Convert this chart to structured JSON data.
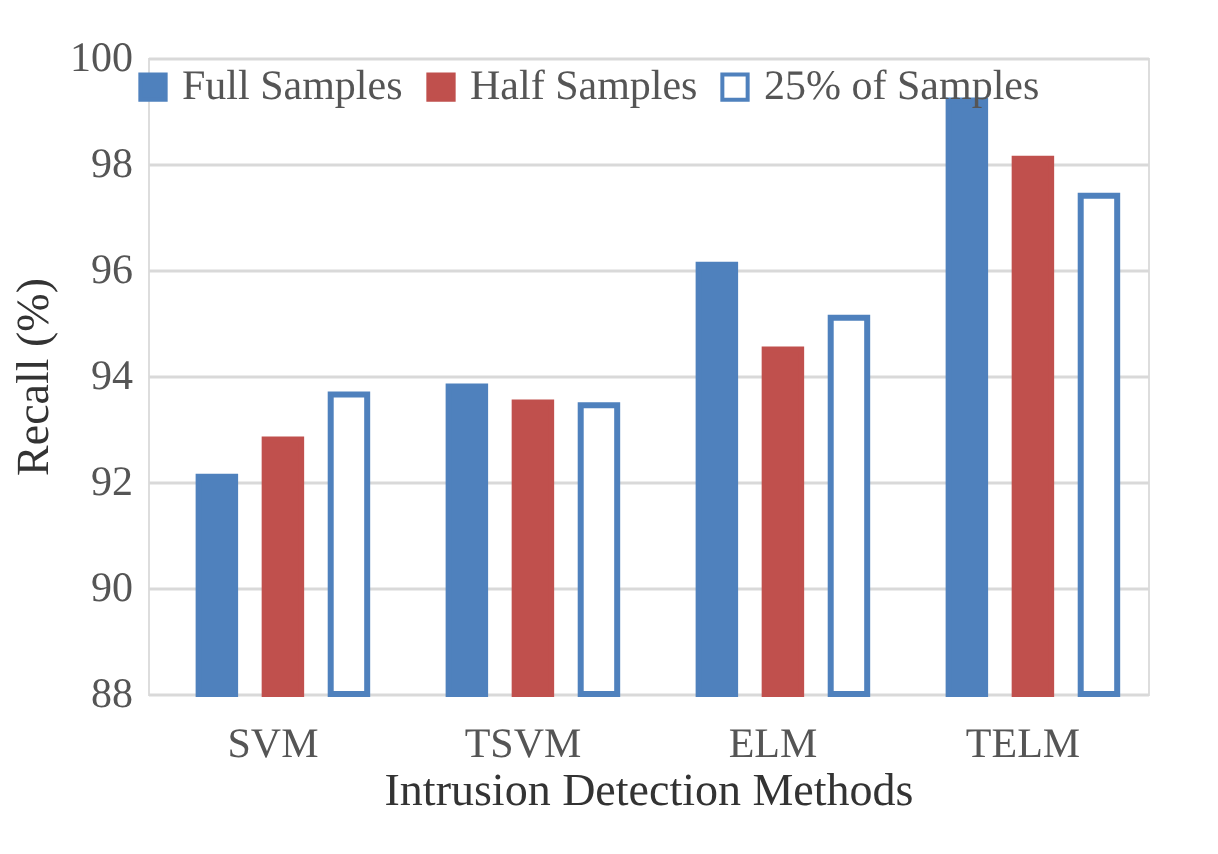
{
  "chart_data": {
    "type": "bar",
    "xlabel": "Intrusion Detection Methods",
    "ylabel": "Recall (%)",
    "categories": [
      "SVM",
      "TSVM",
      "ELM",
      "TELM"
    ],
    "series": [
      {
        "name": "Full Samples",
        "color": "#4f81bd",
        "values": [
          92.1,
          93.8,
          96.1,
          99.2
        ]
      },
      {
        "name": "Half Samples",
        "color": "#c0504d",
        "values": [
          92.8,
          93.5,
          94.5,
          98.1
        ]
      },
      {
        "name": "25% of Samples",
        "color": "#4f81bd",
        "values": [
          93.65,
          93.45,
          95.1,
          97.4
        ]
      }
    ],
    "ylim": [
      88,
      100
    ],
    "yticks": [
      88,
      90,
      92,
      94,
      96,
      98,
      100
    ],
    "grid": "y",
    "legend": "top left"
  }
}
